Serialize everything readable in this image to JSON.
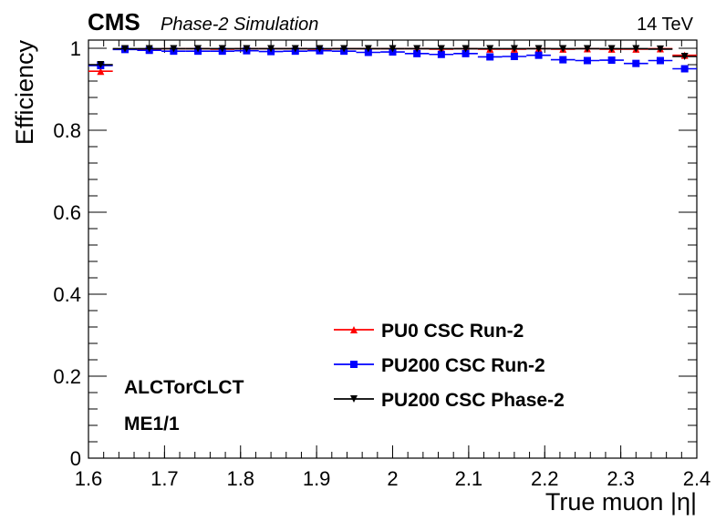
{
  "header": {
    "experiment": "CMS",
    "subtitle": "Phase-2 Simulation",
    "energy": "14 TeV"
  },
  "annotations": [
    "ALCTorCLCT",
    "ME1/1"
  ],
  "chart_data": {
    "type": "scatter",
    "xlabel": "True muon |η|",
    "ylabel": "Efficiency",
    "xlim": [
      1.6,
      2.4
    ],
    "ylim": [
      0,
      1.02
    ],
    "x_ticks": [
      "1.6",
      "1.7",
      "1.8",
      "1.9",
      "2",
      "2.1",
      "2.2",
      "2.3",
      "2.4"
    ],
    "y_ticks": [
      "0",
      "0.2",
      "0.4",
      "0.6",
      "0.8",
      "1"
    ],
    "grid": false,
    "legend_position": "bottom-center",
    "series": [
      {
        "name": "PU0 CSC Run-2",
        "color": "#ff0000",
        "marker": "triangle-up",
        "bins": [
          [
            1.6,
            1.632
          ],
          [
            1.632,
            1.664
          ],
          [
            1.664,
            1.696
          ],
          [
            1.696,
            1.728
          ],
          [
            1.728,
            1.76
          ],
          [
            1.76,
            1.792
          ],
          [
            1.792,
            1.824
          ],
          [
            1.824,
            1.856
          ],
          [
            1.856,
            1.888
          ],
          [
            1.888,
            1.92
          ],
          [
            1.92,
            1.952
          ],
          [
            1.952,
            1.984
          ],
          [
            1.984,
            2.016
          ],
          [
            2.016,
            2.048
          ],
          [
            2.048,
            2.08
          ],
          [
            2.08,
            2.112
          ],
          [
            2.112,
            2.144
          ],
          [
            2.144,
            2.176
          ],
          [
            2.176,
            2.208
          ],
          [
            2.208,
            2.24
          ],
          [
            2.24,
            2.272
          ],
          [
            2.272,
            2.304
          ],
          [
            2.304,
            2.336
          ],
          [
            2.336,
            2.368
          ],
          [
            2.368,
            2.4
          ]
        ],
        "values": [
          0.944,
          0.998,
          0.998,
          0.999,
          0.999,
          0.998,
          0.999,
          0.999,
          0.999,
          0.998,
          0.999,
          0.999,
          0.999,
          0.999,
          0.998,
          0.999,
          0.998,
          0.998,
          0.999,
          0.998,
          0.999,
          0.998,
          0.998,
          0.999,
          0.983
        ]
      },
      {
        "name": "PU200 CSC Run-2",
        "color": "#0000ff",
        "marker": "square",
        "bins": [
          [
            1.6,
            1.632
          ],
          [
            1.632,
            1.664
          ],
          [
            1.664,
            1.696
          ],
          [
            1.696,
            1.728
          ],
          [
            1.728,
            1.76
          ],
          [
            1.76,
            1.792
          ],
          [
            1.792,
            1.824
          ],
          [
            1.824,
            1.856
          ],
          [
            1.856,
            1.888
          ],
          [
            1.888,
            1.92
          ],
          [
            1.92,
            1.952
          ],
          [
            1.952,
            1.984
          ],
          [
            1.984,
            2.016
          ],
          [
            2.016,
            2.048
          ],
          [
            2.048,
            2.08
          ],
          [
            2.08,
            2.112
          ],
          [
            2.112,
            2.144
          ],
          [
            2.144,
            2.176
          ],
          [
            2.176,
            2.208
          ],
          [
            2.208,
            2.24
          ],
          [
            2.24,
            2.272
          ],
          [
            2.272,
            2.304
          ],
          [
            2.304,
            2.336
          ],
          [
            2.336,
            2.368
          ],
          [
            2.368,
            2.4
          ]
        ],
        "values": [
          0.958,
          0.997,
          0.995,
          0.993,
          0.993,
          0.993,
          0.994,
          0.992,
          0.993,
          0.994,
          0.993,
          0.99,
          0.991,
          0.987,
          0.985,
          0.987,
          0.979,
          0.98,
          0.983,
          0.972,
          0.97,
          0.971,
          0.963,
          0.97,
          0.95
        ]
      },
      {
        "name": "PU200 CSC Phase-2",
        "color": "#000000",
        "marker": "triangle-down",
        "bins": [
          [
            1.6,
            1.632
          ],
          [
            1.632,
            1.664
          ],
          [
            1.664,
            1.696
          ],
          [
            1.696,
            1.728
          ],
          [
            1.728,
            1.76
          ],
          [
            1.76,
            1.792
          ],
          [
            1.792,
            1.824
          ],
          [
            1.824,
            1.856
          ],
          [
            1.856,
            1.888
          ],
          [
            1.888,
            1.92
          ],
          [
            1.92,
            1.952
          ],
          [
            1.952,
            1.984
          ],
          [
            1.984,
            2.016
          ],
          [
            2.016,
            2.048
          ],
          [
            2.048,
            2.08
          ],
          [
            2.08,
            2.112
          ],
          [
            2.112,
            2.144
          ],
          [
            2.144,
            2.176
          ],
          [
            2.176,
            2.208
          ],
          [
            2.208,
            2.24
          ],
          [
            2.24,
            2.272
          ],
          [
            2.272,
            2.304
          ],
          [
            2.304,
            2.336
          ],
          [
            2.336,
            2.368
          ],
          [
            2.368,
            2.4
          ]
        ],
        "values": [
          0.96,
          0.999,
          0.999,
          0.999,
          0.999,
          0.999,
          0.999,
          0.999,
          0.999,
          0.999,
          0.999,
          0.999,
          0.999,
          0.999,
          0.999,
          0.999,
          0.999,
          0.999,
          0.999,
          0.999,
          0.999,
          0.999,
          0.999,
          0.998,
          0.98
        ]
      }
    ]
  }
}
